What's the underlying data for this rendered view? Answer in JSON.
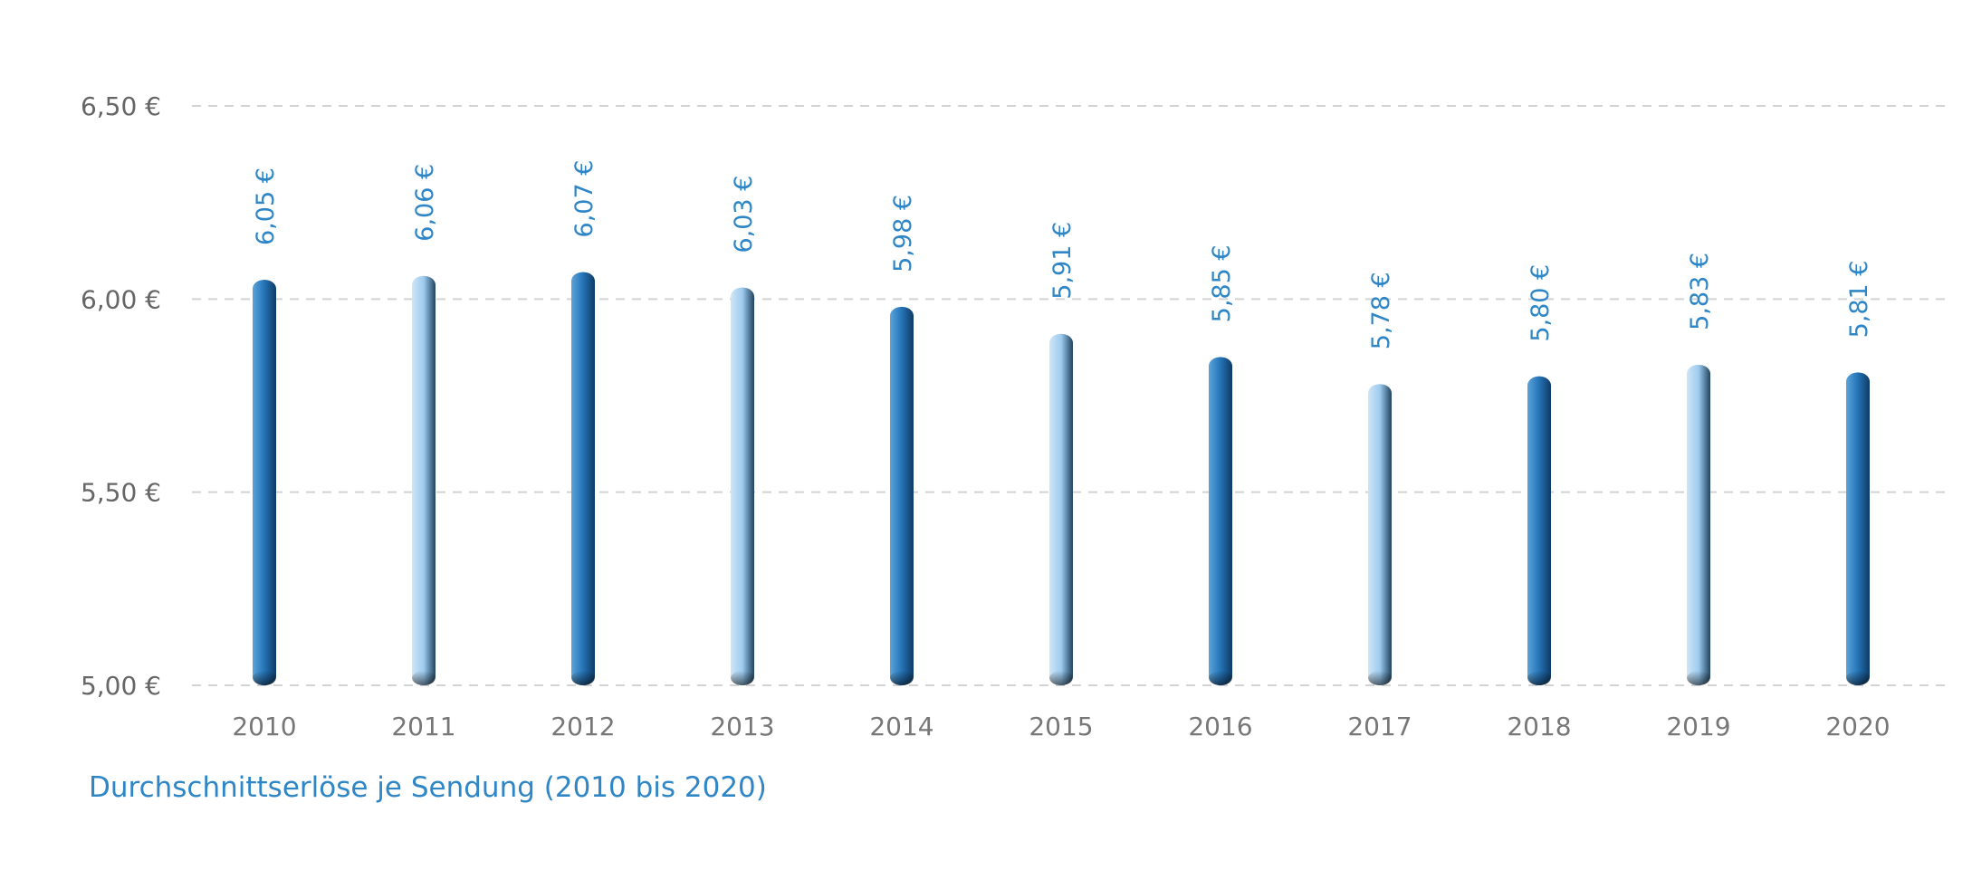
{
  "colors": {
    "accent": "#2f86c6",
    "dark_bar_light": "#5da4d8",
    "dark_bar_mid": "#2878bc",
    "dark_bar_dark": "#0d3b66",
    "light_bar_light": "#cfe6f7",
    "light_bar_mid": "#9dcbef",
    "light_bar_dark": "#20435f",
    "grid": "#d3d3d3",
    "tick_text": "#666666"
  },
  "chart_data": {
    "type": "bar",
    "title": "Durchschnittserlöse je Sendung (2010 bis 2020)",
    "xlabel": "",
    "ylabel": "",
    "categories": [
      "2010",
      "2011",
      "2012",
      "2013",
      "2014",
      "2015",
      "2016",
      "2017",
      "2018",
      "2019",
      "2020"
    ],
    "values": [
      6.05,
      6.06,
      6.07,
      6.03,
      5.98,
      5.91,
      5.85,
      5.78,
      5.8,
      5.83,
      5.81
    ],
    "data_labels": [
      "6,05 €",
      "6,06 €",
      "6,07 €",
      "6,03 €",
      "5,98 €",
      "5,91 €",
      "5,85 €",
      "5,78 €",
      "5,80 €",
      "5,83 €",
      "5,81 €"
    ],
    "bar_shades": [
      "dark",
      "light",
      "dark",
      "light",
      "dark",
      "light",
      "dark",
      "light",
      "dark",
      "light",
      "dark"
    ],
    "ylim": [
      5.0,
      6.5
    ],
    "yticks": [
      5.0,
      5.5,
      6.0,
      6.5
    ],
    "ytick_labels": [
      "5,00 €",
      "5,50 €",
      "6,00 €",
      "6,50 €"
    ],
    "grid": true,
    "grid_style": "dashed horizontal",
    "legend": "none"
  }
}
